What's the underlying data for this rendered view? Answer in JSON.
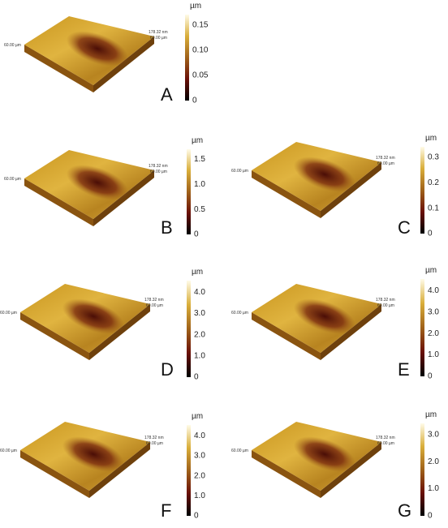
{
  "figure": {
    "panels": [
      {
        "label": "A",
        "unit": "µm",
        "ticks": [
          "0.15",
          "0.10",
          "0.05",
          "0"
        ],
        "width_label": "60.00 µm",
        "height_label": "178.32 nm",
        "depth_label": "60.00 µm"
      },
      {
        "label": "B",
        "unit": "µm",
        "ticks": [
          "1.5",
          "1.0",
          "0.5",
          "0"
        ],
        "width_label": "60.00 µm",
        "height_label": "178.32 nm",
        "depth_label": "60.00 µm"
      },
      {
        "label": "C",
        "unit": "µm",
        "ticks": [
          "0.3",
          "0.2",
          "0.1",
          "0"
        ],
        "width_label": "60.00 µm",
        "height_label": "178.32 nm",
        "depth_label": "60.00 µm"
      },
      {
        "label": "D",
        "unit": "µm",
        "ticks": [
          "4.0",
          "3.0",
          "2.0",
          "1.0",
          "0"
        ],
        "width_label": "60.00 µm",
        "height_label": "178.32 nm",
        "depth_label": "60.00 µm"
      },
      {
        "label": "E",
        "unit": "µm",
        "ticks": [
          "4.0",
          "3.0",
          "2.0",
          "1.0",
          "0"
        ],
        "width_label": "60.00 µm",
        "height_label": "178.32 nm",
        "depth_label": "60.00 µm"
      },
      {
        "label": "F",
        "unit": "µm",
        "ticks": [
          "4.0",
          "3.0",
          "2.0",
          "1.0",
          "0"
        ],
        "width_label": "60.00 µm",
        "height_label": "178.32 nm",
        "depth_label": "60.00 µm"
      },
      {
        "label": "G",
        "unit": "µm",
        "ticks": [
          "3.0",
          "2.0",
          "1.0",
          "0"
        ],
        "width_label": "60.00 µm",
        "height_label": "178.32 nm",
        "depth_label": "60.00 µm"
      }
    ]
  }
}
